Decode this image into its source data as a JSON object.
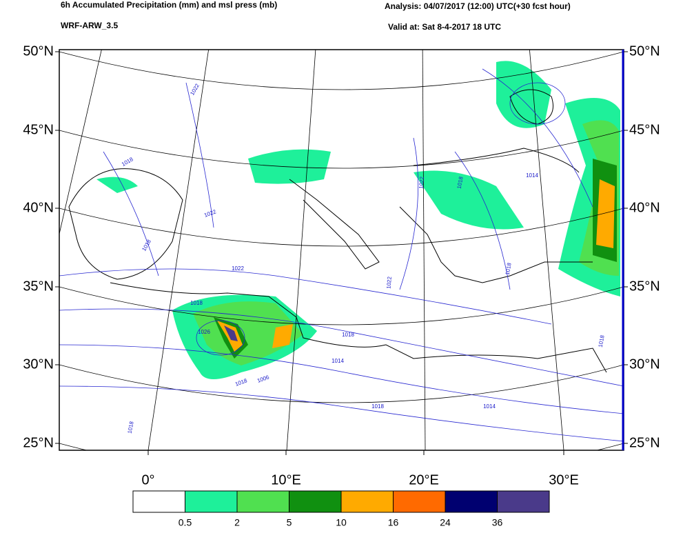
{
  "header": {
    "title": "6h Accumulated Precipitation (mm) and msl press (mb)",
    "model": "WRF-ARW_3.5",
    "analysis": "Analysis: 04/07/2017 (12:00) UTC(+30 fcst hour)",
    "valid": "Valid at: Sat 8-4-2017  18 UTC"
  },
  "lat_labels": [
    "50°N",
    "45°N",
    "40°N",
    "35°N",
    "30°N",
    "25°N"
  ],
  "lon_labels": [
    "0°",
    "10°E",
    "20°E",
    "30°E"
  ],
  "isobar_labels": [
    "1022",
    "1018",
    "1022",
    "1018",
    "1022",
    "1018",
    "1026",
    "1018",
    "1006",
    "1018",
    "1014",
    "1018",
    "1022",
    "1018",
    "1014",
    "1022",
    "1018",
    "1014",
    "1018",
    "1018"
  ],
  "colorbar": {
    "colors": [
      "#ffffff",
      "#1ef09a",
      "#50e050",
      "#109010",
      "#ffaa00",
      "#ff6a00",
      "#000070",
      "#4a3a8a"
    ],
    "labels": [
      "0.5",
      "2",
      "5",
      "10",
      "16",
      "24",
      "36"
    ]
  }
}
